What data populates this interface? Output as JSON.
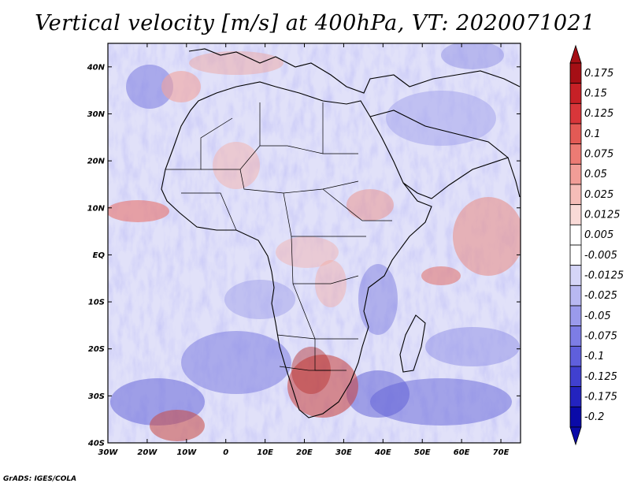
{
  "title": "Vertical velocity [m/s] at 400hPa, VT: 2020071021",
  "credit": "GrADS: IGES/COLA",
  "map": {
    "region": "Africa",
    "lon_range": [
      -30,
      75
    ],
    "lat_range": [
      -40,
      45
    ],
    "lon_ticks": [
      "30W",
      "20W",
      "10W",
      "0",
      "10E",
      "20E",
      "30E",
      "40E",
      "50E",
      "60E",
      "70E"
    ],
    "lat_ticks": [
      "40N",
      "30N",
      "20N",
      "10N",
      "EQ",
      "10S",
      "20S",
      "30S",
      "40S"
    ],
    "variable": "Vertical velocity",
    "units": "m/s",
    "level": "400hPa",
    "valid_time": "2020071021"
  },
  "colorbar": {
    "labels": [
      "0.175",
      "0.15",
      "0.125",
      "0.1",
      "0.075",
      "0.05",
      "0.025",
      "0.0125",
      "0.005",
      "-0.005",
      "-0.0125",
      "-0.025",
      "-0.05",
      "-0.075",
      "-0.1",
      "-0.125",
      "-0.175",
      "-0.2"
    ],
    "colors": [
      "#a50f15",
      "#c62026",
      "#d8363a",
      "#e35a55",
      "#ec7b74",
      "#f19d97",
      "#f5bdb8",
      "#f9dad7",
      "#ffffff",
      "#ffffff",
      "#d5d5f7",
      "#b8b8f1",
      "#9a9aeb",
      "#7d7de5",
      "#5f5fdc",
      "#4040cf",
      "#2323bf",
      "#0a0aa8"
    ]
  }
}
